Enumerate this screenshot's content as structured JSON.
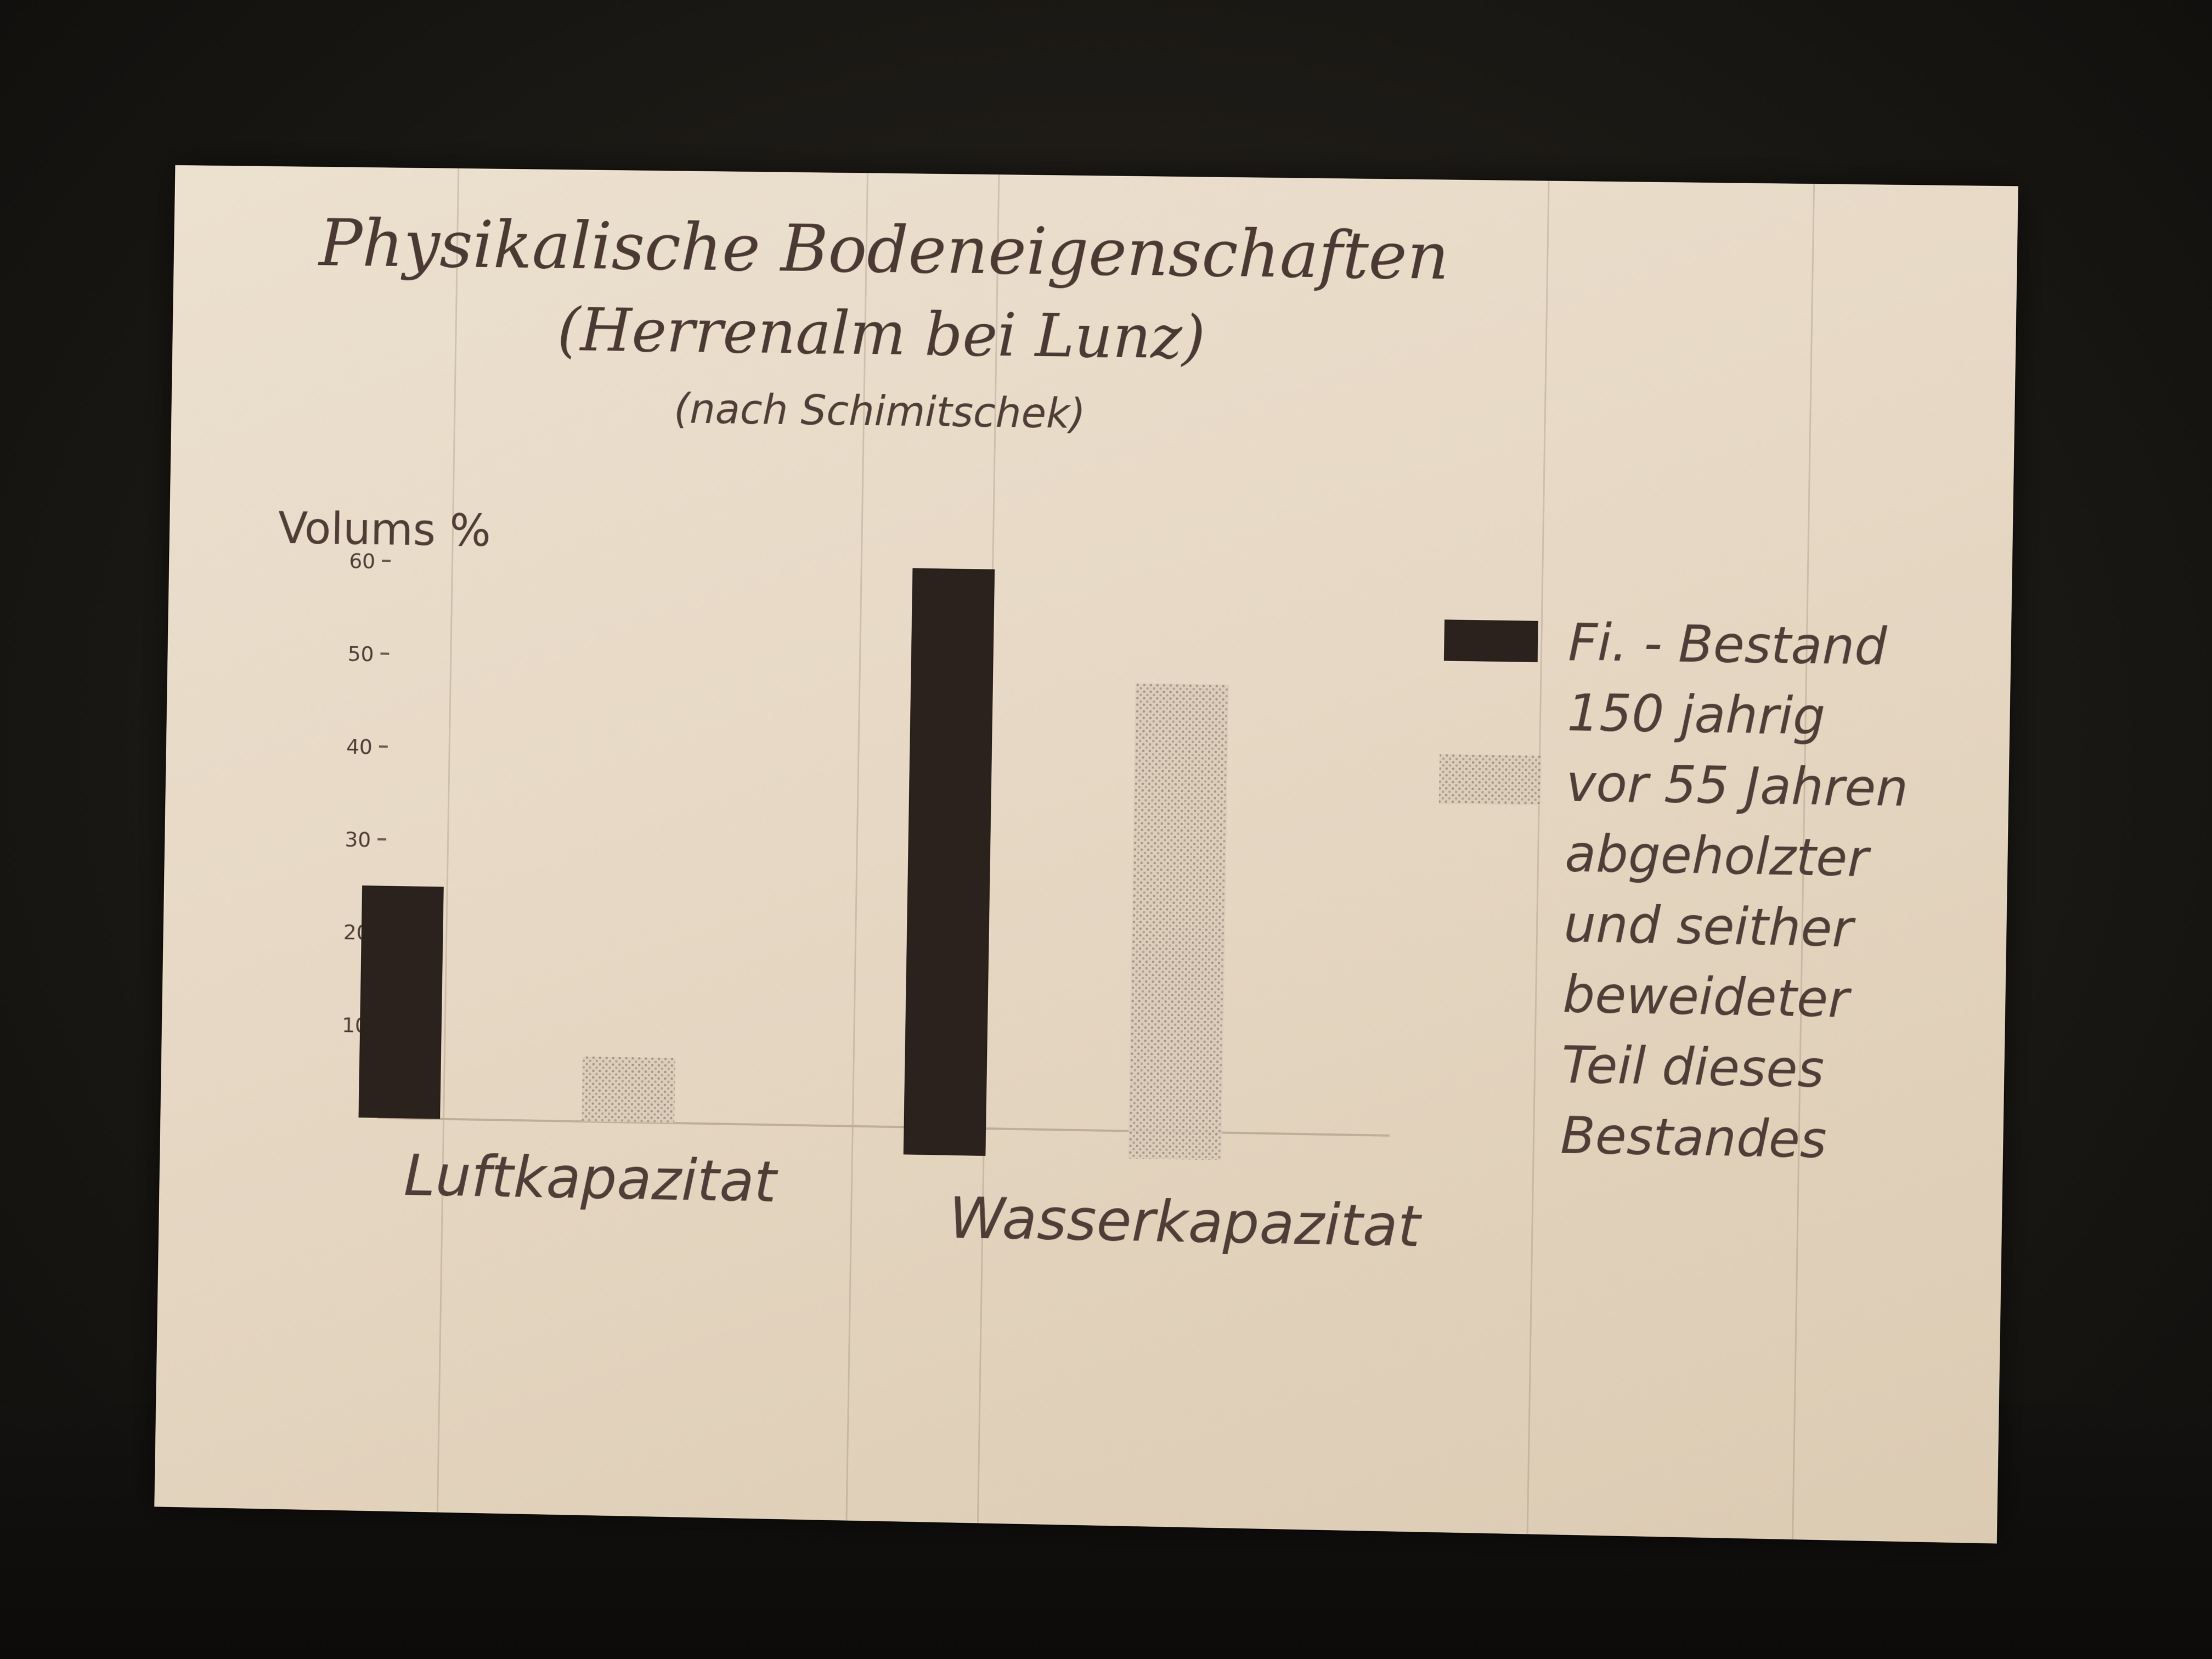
{
  "chart_data": {
    "type": "bar",
    "title": "Physikalische Bodeneigenschaften",
    "subtitle": "(Herrenalm bei Lunz)",
    "source_note": "(nach Schimitschek)",
    "ylabel": "Volums %",
    "ylim": [
      0,
      60
    ],
    "yticks": [
      "10",
      "20",
      "30",
      "40",
      "50",
      "60"
    ],
    "categories": [
      "Luftkapazitat",
      "Wasserkapazitat"
    ],
    "series": [
      {
        "name": "Fi. - Bestand 150 jährig",
        "color": "#2b211d",
        "pattern": "solid",
        "values": [
          25,
          60
        ]
      },
      {
        "name": "vor 55 Jahren abgeholzter und seither beweideter Teil dieses Bestandes",
        "color": "#cdbfae",
        "pattern": "dotted",
        "values": [
          7,
          48
        ]
      }
    ],
    "legend": {
      "placement": "right",
      "entries": [
        [
          "Fi. - Bestand",
          "150 jahrig"
        ],
        [
          "vor 55 Jahren",
          "abgeholzter",
          "und seither",
          "beweideter",
          "Teil dieses",
          "Bestandes"
        ]
      ]
    },
    "grid": false
  }
}
